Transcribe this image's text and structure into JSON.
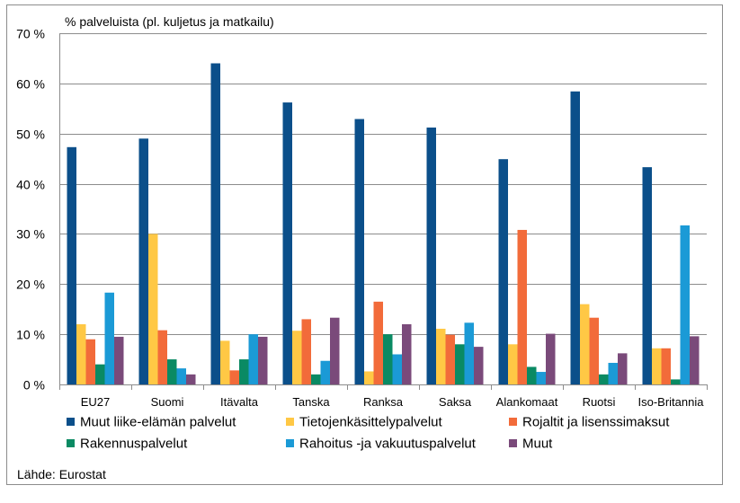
{
  "chart_data": {
    "type": "bar",
    "ylabel": "% palveluista (pl. kuljetus ja matkailu)",
    "ylim": [
      0,
      70
    ],
    "yticks": [
      0,
      10,
      20,
      30,
      40,
      50,
      60,
      70
    ],
    "ytick_labels": [
      "0 %",
      "10 %",
      "20 %",
      "30 %",
      "40 %",
      "50 %",
      "60 %",
      "70 %"
    ],
    "grid": true,
    "legend_position": "bottom",
    "categories": [
      "EU27",
      "Suomi",
      "Itävalta",
      "Tanska",
      "Ranksa",
      "Saksa",
      "Alankomaat",
      "Ruotsi",
      "Iso-Britannia"
    ],
    "series": [
      {
        "name": "Muut liike-elämän palvelut",
        "color": "#0b4f8a",
        "values": [
          47.3,
          49,
          64,
          56.2,
          52.9,
          51.2,
          44.9,
          58.4,
          43.3
        ]
      },
      {
        "name": "Tietojenkäsittelypalvelut",
        "color": "#ffc845",
        "values": [
          12,
          30,
          8.7,
          10.7,
          2.6,
          11.1,
          8,
          16,
          7.2
        ]
      },
      {
        "name": "Rojaltit ja lisenssimaksut",
        "color": "#f26b3a",
        "values": [
          9,
          10.8,
          2.8,
          13,
          16.5,
          9.9,
          30.8,
          13.3,
          7.2
        ]
      },
      {
        "name": "Rakennuspalvelut",
        "color": "#0a8a63",
        "values": [
          4,
          5,
          5,
          2,
          10,
          8,
          3.5,
          2,
          1
        ]
      },
      {
        "name": "Rahoitus -ja vakuutuspalvelut",
        "color": "#1b9ad6",
        "values": [
          18.3,
          3.2,
          10,
          4.7,
          6,
          12.3,
          2.5,
          4.3,
          31.7
        ]
      },
      {
        "name": "Muut",
        "color": "#7a4a7a",
        "values": [
          9.5,
          2,
          9.5,
          13.3,
          12,
          7.5,
          10.1,
          6.2,
          9.6
        ]
      }
    ]
  },
  "source": "Lähde: Eurostat"
}
